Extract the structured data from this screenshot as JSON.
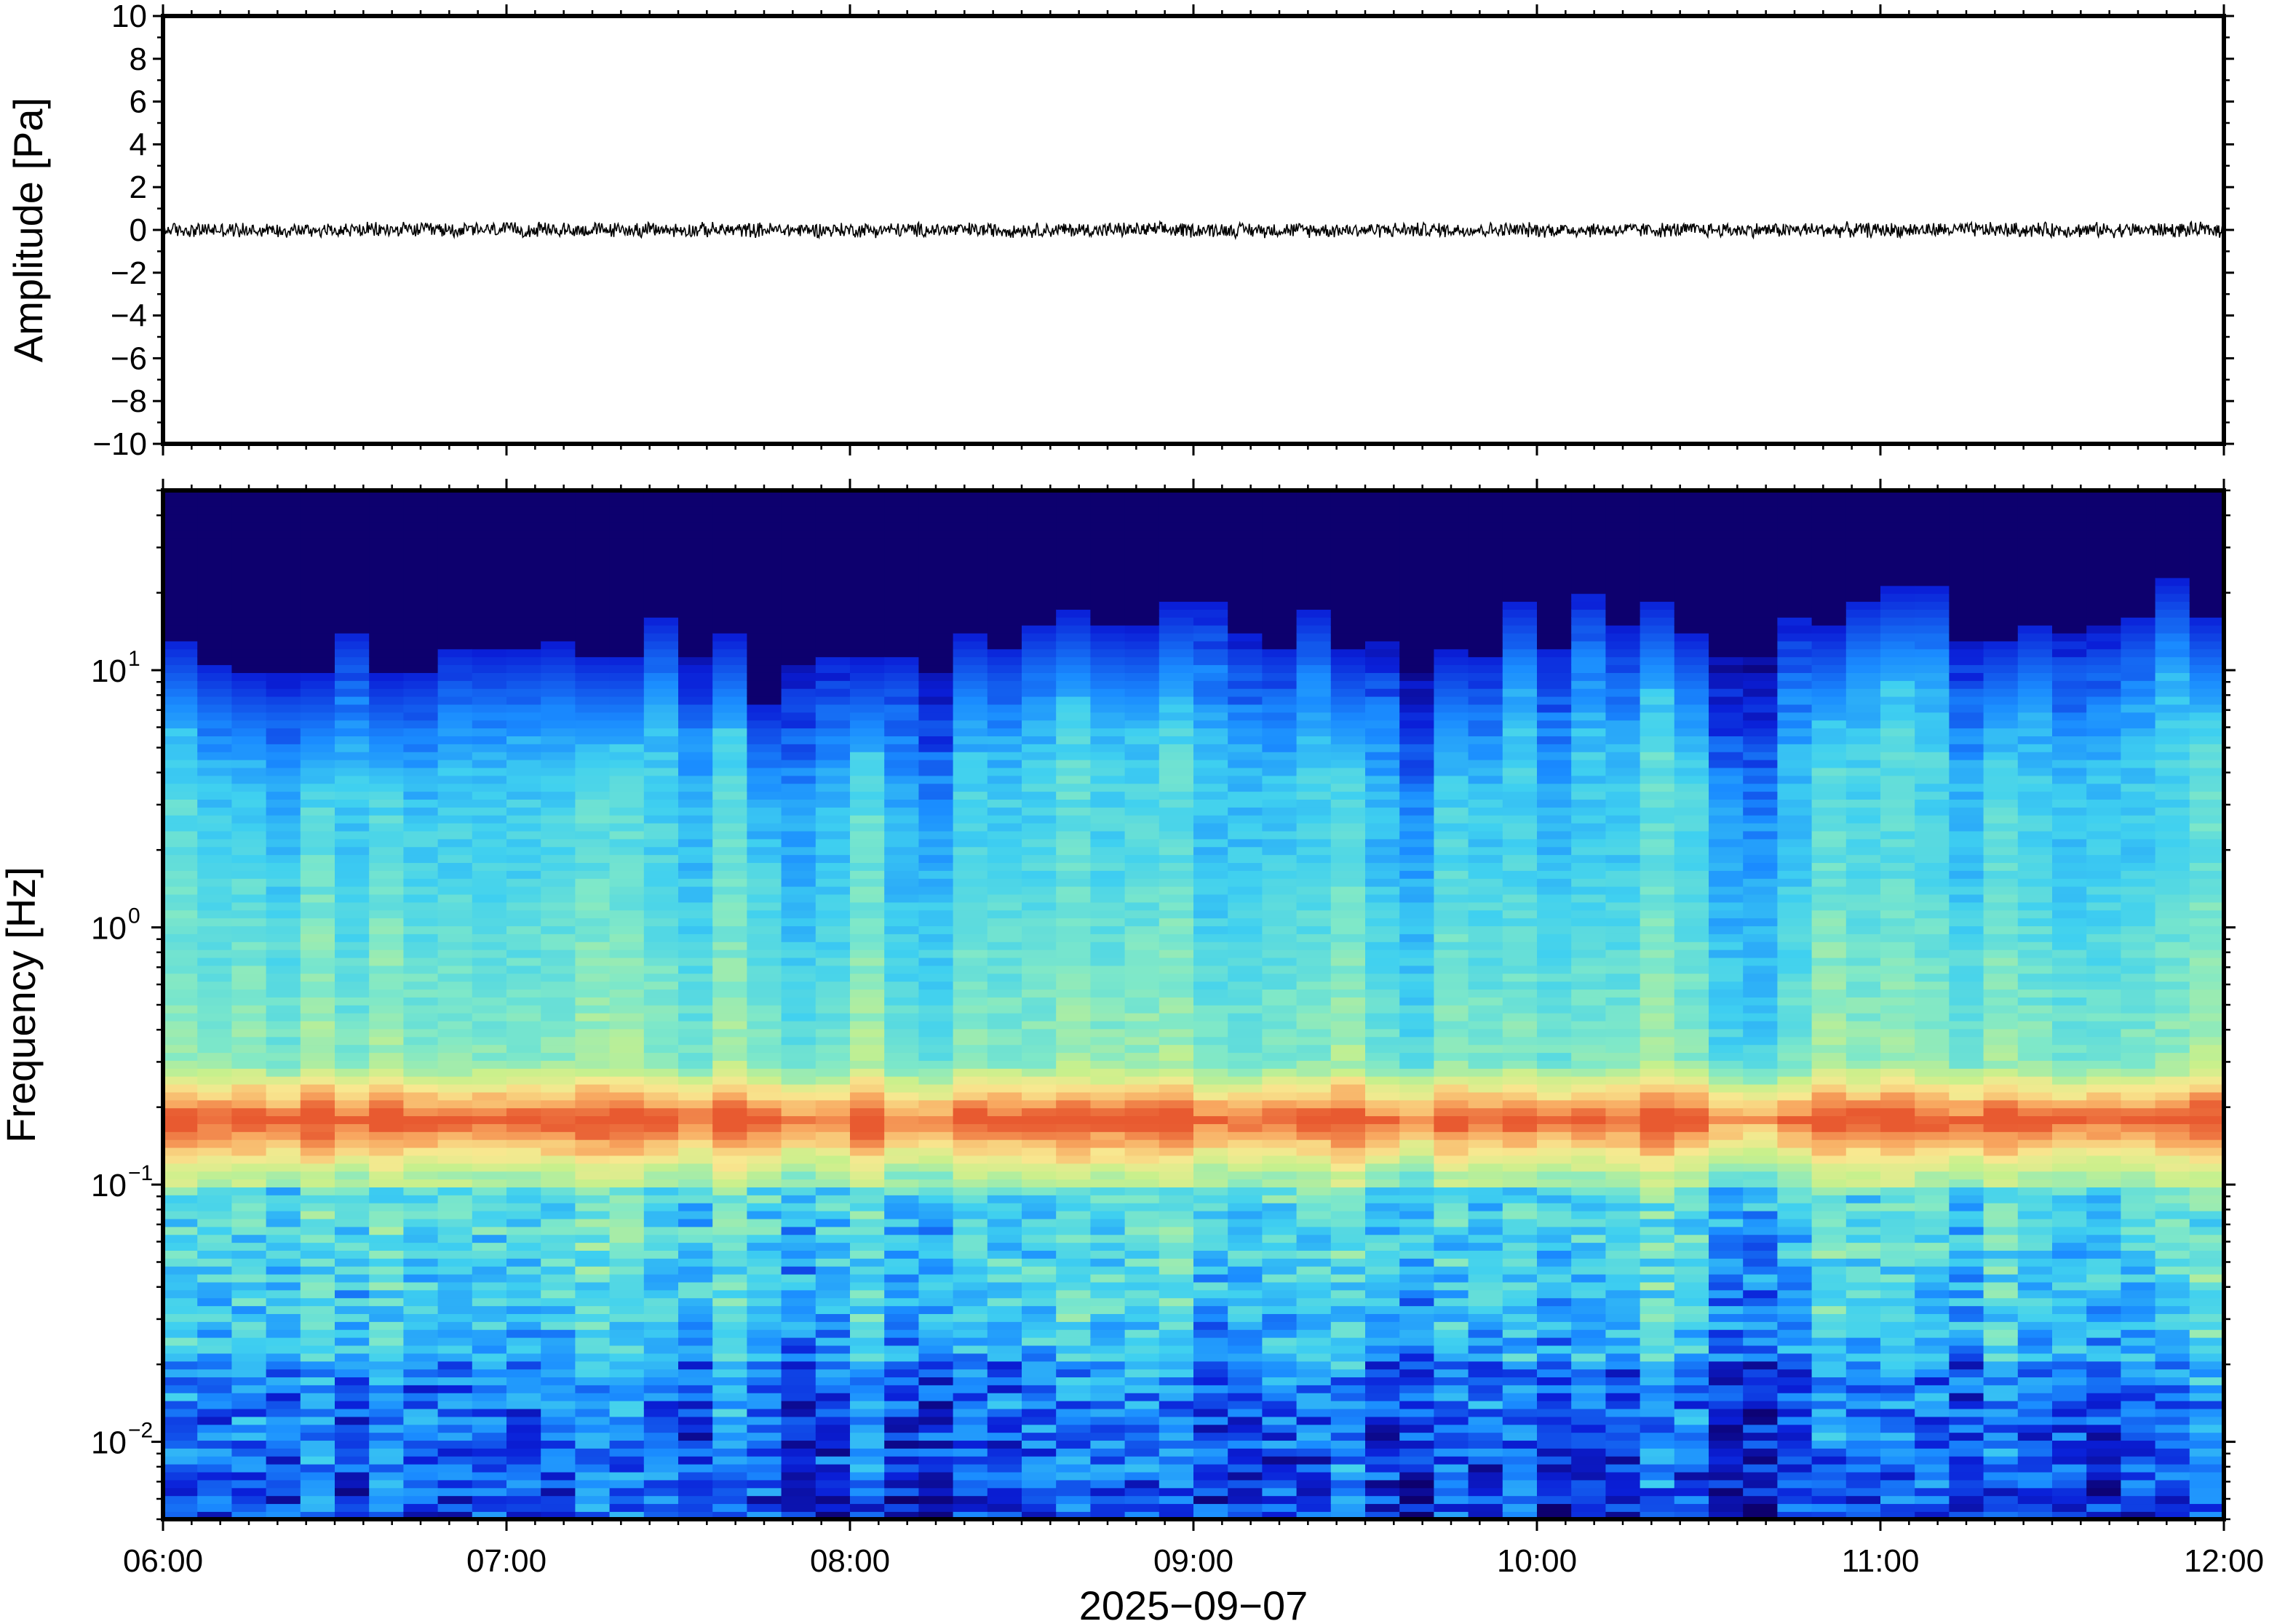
{
  "chart_data": [
    {
      "type": "line",
      "name": "waveform",
      "ylabel": "Amplitude [Pa]",
      "ylim": [
        -10,
        10
      ],
      "yticks": [
        "10",
        "8",
        "6",
        "4",
        "2",
        "0",
        "−2",
        "−4",
        "−6",
        "−8",
        "−10"
      ],
      "ytick_values": [
        10,
        8,
        6,
        4,
        2,
        0,
        -2,
        -4,
        -6,
        -8,
        -10
      ],
      "xlim": [
        "06:00",
        "12:00"
      ],
      "series": [
        {
          "approx_mean": 0,
          "approx_peak_amplitude": 0.4,
          "color": "#000000"
        }
      ],
      "grid": false
    },
    {
      "type": "heatmap",
      "name": "spectrogram",
      "ylabel": "Frequency [Hz]",
      "yscale": "log",
      "ylim": [
        0.005,
        50
      ],
      "yticks": [
        {
          "value": 0.01,
          "base": "10",
          "exp": "−2"
        },
        {
          "value": 0.1,
          "base": "10",
          "exp": "−1"
        },
        {
          "value": 1,
          "base": "10",
          "exp": "0"
        },
        {
          "value": 10,
          "base": "10",
          "exp": "1"
        }
      ],
      "colormap": "jet",
      "colormap_stops": [
        "#0d006e",
        "#0a1fd8",
        "#1a8cff",
        "#3fd0f0",
        "#7fe8c8",
        "#c8f08c",
        "#f8e890",
        "#f8a860",
        "#e85a30"
      ],
      "features": {
        "dominant_band_hz": 0.18,
        "dominant_band_color": "#f08c50",
        "upper_cutoff_hz_range": [
          10,
          20
        ],
        "time_bins": 60
      },
      "grid": false
    }
  ],
  "xaxis": {
    "ticks": [
      "06:00",
      "07:00",
      "08:00",
      "09:00",
      "10:00",
      "11:00",
      "12:00"
    ],
    "date_label": "2025−09−07"
  }
}
